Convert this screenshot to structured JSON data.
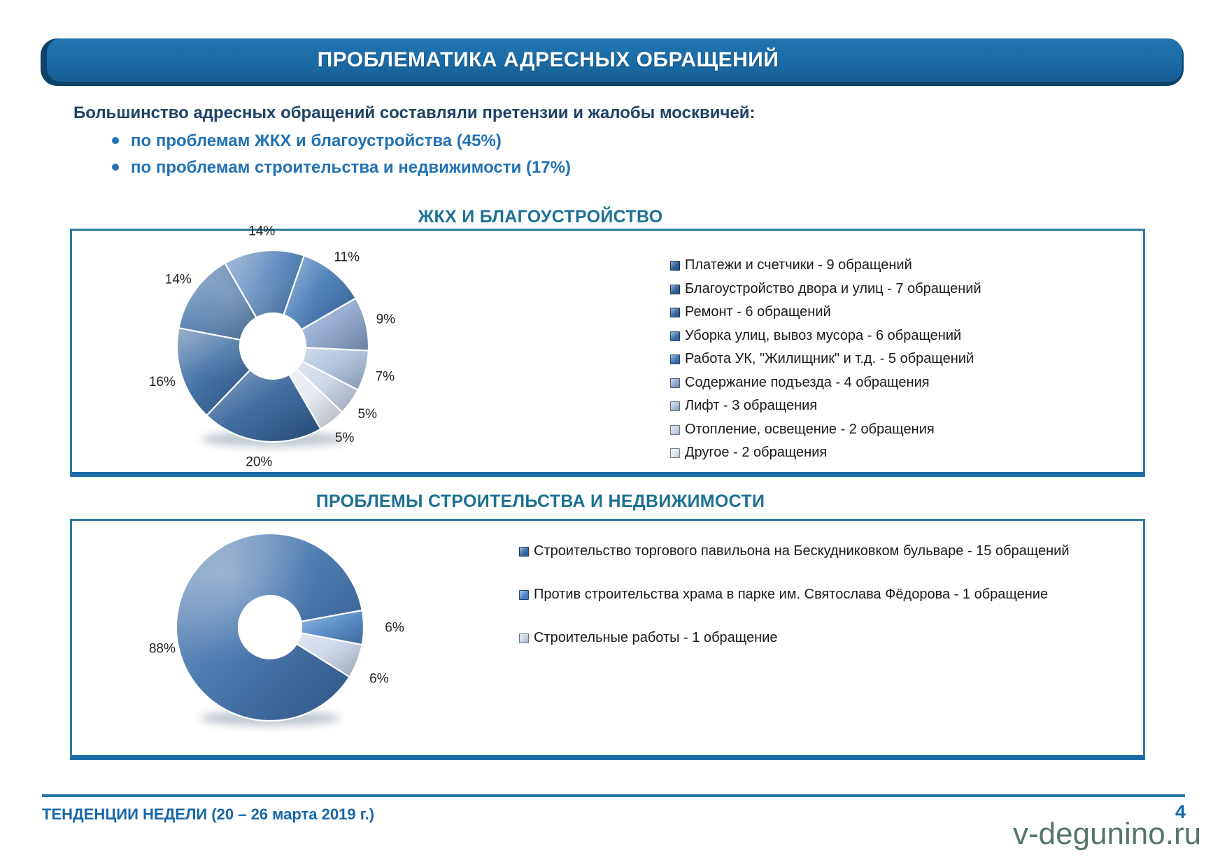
{
  "header": {
    "title": "ПРОБЛЕМАТИКА АДРЕСНЫХ ОБРАЩЕНИЙ"
  },
  "intro": {
    "lead": "Большинство адресных обращений составляли претензии и жалобы москвичей:",
    "bullets": [
      "по проблемам ЖКХ и благоустройства (45%)",
      "по проблемам строительства и недвижимости (17%)"
    ]
  },
  "chart_data": [
    {
      "type": "pie",
      "subtype": "donut",
      "title": "ЖКХ И БЛАГОУСТРОЙСТВО",
      "legend_position": "right",
      "start_angle": 150,
      "slices": [
        {
          "label": "Платежи и счетчики - 9 обращений",
          "value": 9,
          "pct": "20%",
          "color": "#2F5F96"
        },
        {
          "label": "Благоустройство двора и улиц - 7 обращений",
          "value": 7,
          "pct": "16%",
          "color": "#33649C"
        },
        {
          "label": "Ремонт - 6 обращений",
          "value": 6,
          "pct": "14%",
          "color": "#3769A1"
        },
        {
          "label": "Уборка улиц, вывоз мусора - 6 обращений",
          "value": 6,
          "pct": "14%",
          "color": "#3C72AF"
        },
        {
          "label": "Работа УК, \"Жилищник\" и т.д. - 5 обращений",
          "value": 5,
          "pct": "11%",
          "color": "#4076B5"
        },
        {
          "label": "Содержание подъезда - 4 обращения",
          "value": 4,
          "pct": "9%",
          "color": "#8CA6CE"
        },
        {
          "label": "Лифт - 3 обращения",
          "value": 3,
          "pct": "7%",
          "color": "#ABBEDC"
        },
        {
          "label": "Отопление, освещение - 2 обращения",
          "value": 2,
          "pct": "5%",
          "color": "#C8D3E6"
        },
        {
          "label": "Другое - 2 обращения",
          "value": 2,
          "pct": "5%",
          "color": "#E1E6EF"
        }
      ]
    },
    {
      "type": "pie",
      "subtype": "donut",
      "title": "ПРОБЛЕМЫ СТРОИТЕЛЬСТВА И НЕДВИЖИМОСТИ",
      "legend_position": "right",
      "start_angle": 122,
      "slices": [
        {
          "label": "Строительство торгового павильона на Бескудниковком бульваре - 15 обращений",
          "value": 15,
          "pct": "88%",
          "color": "#3A6CA7",
          "label_angle": 259,
          "label_r": 157
        },
        {
          "label": "Против строительства храма в парке им. Святослава Фёдорова - 1 обращение",
          "value": 1,
          "pct": "6%",
          "color": "#4E86C6",
          "label_angle": 90,
          "label_r": 178
        },
        {
          "label": "Строительные работы - 1 обращение",
          "value": 1,
          "pct": "6%",
          "color": "#C9D4E6",
          "label_angle": 115,
          "label_r": 172
        }
      ]
    }
  ],
  "footer": {
    "label": "ТЕНДЕНЦИИ НЕДЕЛИ (20 – 26 марта 2019 г.)",
    "page": "4",
    "watermark": "v-degunino.ru"
  },
  "colors": {
    "banner_blue": "#1A6AA5",
    "banner_shadow": "#0E4368",
    "title_text": "#FFFFFF",
    "lead_text": "#1F4365",
    "bullet_text": "#2272B4",
    "section_title": "#1D7193",
    "box_border": "#2C7B9D",
    "box_border_bottom": "#1B6DA9",
    "footer_text": "#1767A9",
    "watermark": "#55756E",
    "percent_label": "#222222",
    "legend_text": "#1A1A1A"
  }
}
